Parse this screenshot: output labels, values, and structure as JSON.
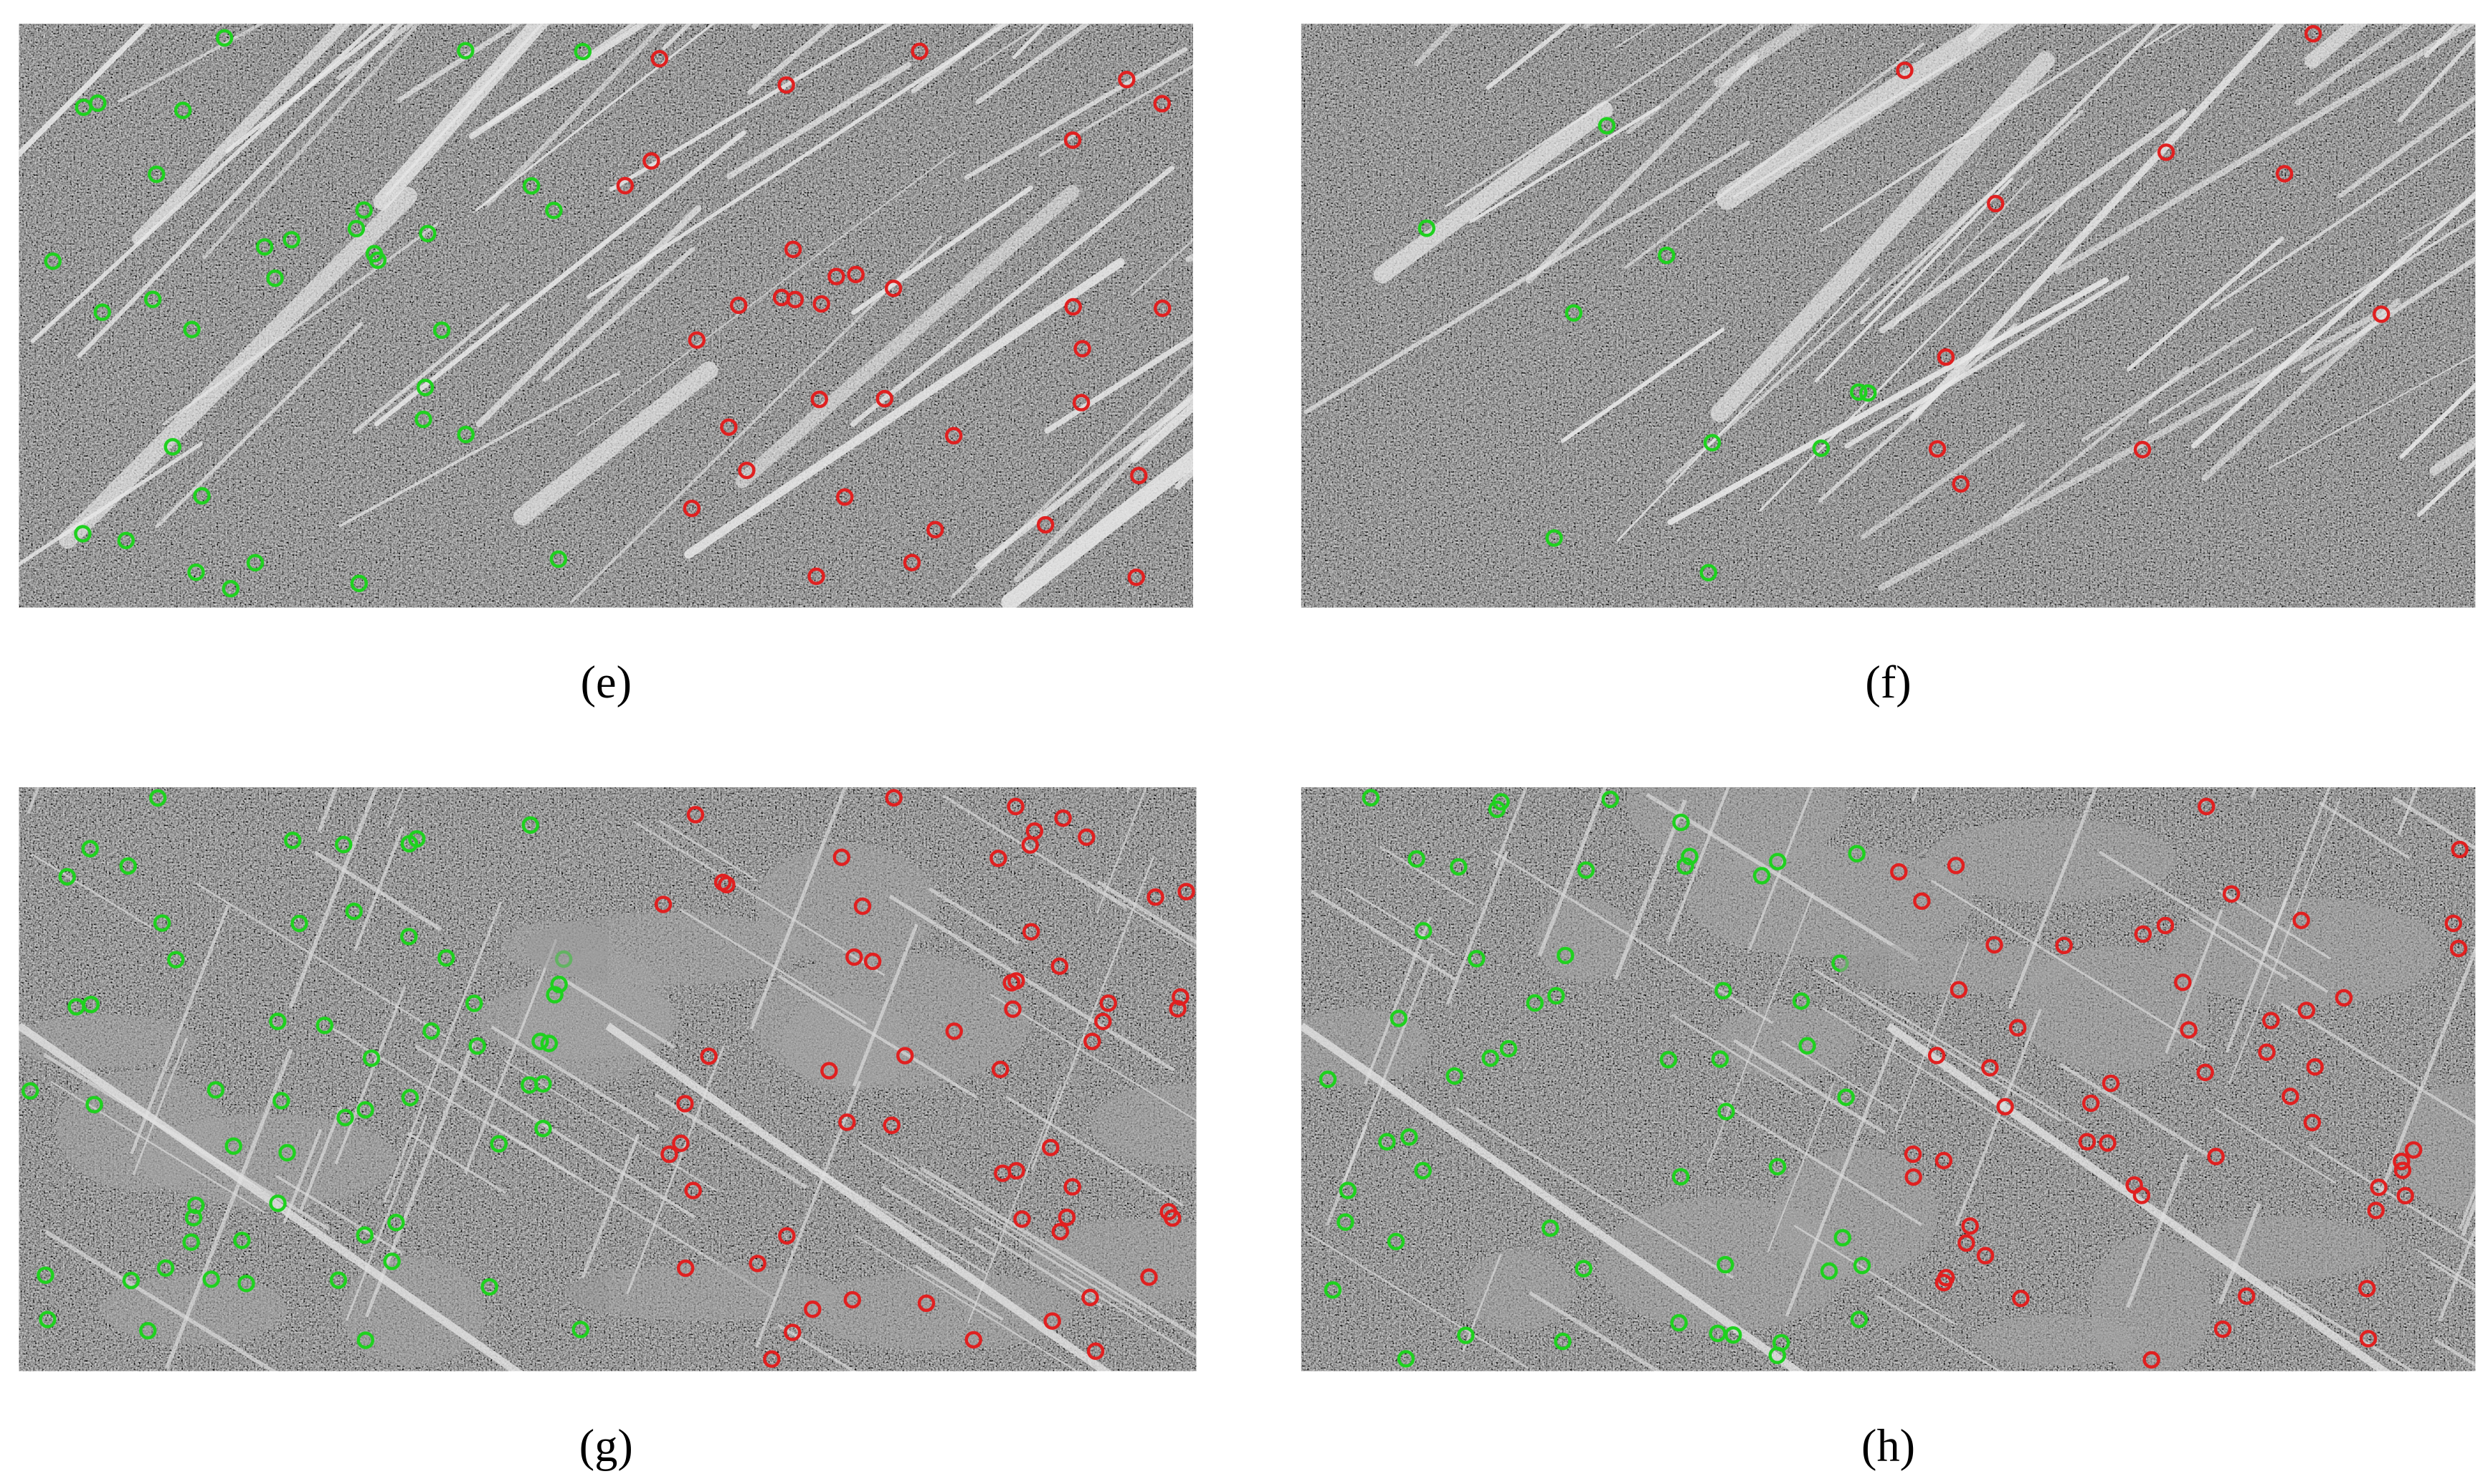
{
  "panels": [
    {
      "caption": "(e)"
    },
    {
      "caption": "(f)"
    },
    {
      "caption": "(g)"
    },
    {
      "caption": "(h)"
    }
  ]
}
